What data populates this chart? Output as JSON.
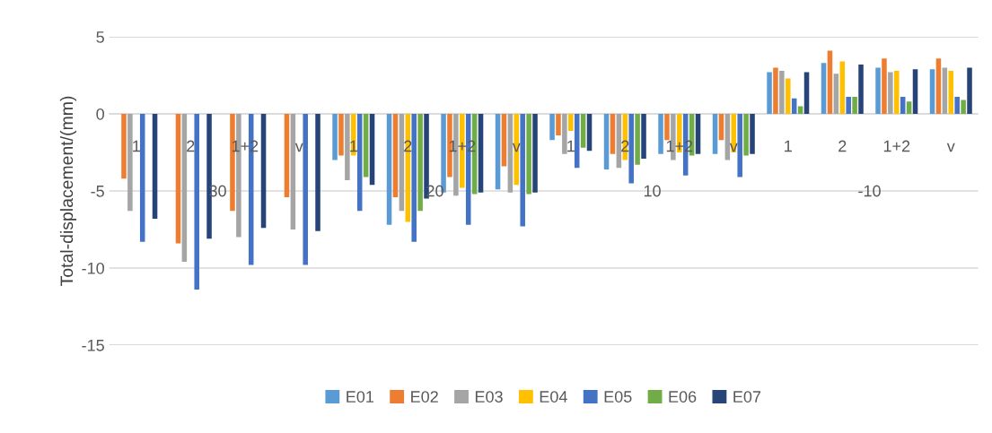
{
  "chart_data": {
    "type": "bar",
    "ylabel": "Total-displacement/(mm)",
    "categories": [
      "1",
      "2",
      "1+2",
      "v",
      "1",
      "2",
      "1+2",
      "v",
      "1",
      "2",
      "1+2",
      "v",
      "1",
      "2",
      "1+2",
      "v"
    ],
    "annotations": [
      "30",
      "20",
      "10",
      "-10"
    ],
    "series": [
      {
        "name": "E01",
        "color": "#5b9bd5",
        "values": [
          null,
          null,
          null,
          null,
          -3.0,
          -7.2,
          -5.1,
          -4.9,
          -1.7,
          -3.6,
          -2.6,
          -2.6,
          2.7,
          3.3,
          3.0,
          2.9
        ]
      },
      {
        "name": "E02",
        "color": "#ed7d31",
        "values": [
          -4.2,
          -8.4,
          -6.3,
          -5.4,
          -2.7,
          -5.4,
          -4.1,
          -3.4,
          -1.4,
          -2.6,
          -1.7,
          -1.7,
          3.0,
          4.1,
          3.6,
          3.6
        ]
      },
      {
        "name": "E03",
        "color": "#a5a5a5",
        "values": [
          -6.3,
          -9.6,
          -8.0,
          -7.5,
          -4.3,
          -6.3,
          -5.3,
          -5.1,
          -2.6,
          -3.5,
          -3.0,
          -3.0,
          2.8,
          2.6,
          2.7,
          3.0
        ]
      },
      {
        "name": "E04",
        "color": "#ffc000",
        "values": [
          null,
          null,
          null,
          null,
          -2.7,
          -7.0,
          -4.8,
          -4.6,
          -1.1,
          -3.0,
          -2.5,
          -2.5,
          2.3,
          3.4,
          2.8,
          2.8
        ]
      },
      {
        "name": "E05",
        "color": "#4472c4",
        "values": [
          -8.3,
          -11.4,
          -9.8,
          -9.8,
          -6.3,
          -8.3,
          -7.2,
          -7.3,
          -3.5,
          -4.5,
          -4.0,
          -4.1,
          1.0,
          1.1,
          1.1,
          1.1
        ]
      },
      {
        "name": "E06",
        "color": "#70ad47",
        "values": [
          null,
          null,
          null,
          null,
          -4.1,
          -6.3,
          -5.2,
          -5.2,
          -2.2,
          -3.3,
          -2.7,
          -2.7,
          0.5,
          1.1,
          0.8,
          0.9
        ]
      },
      {
        "name": "E07",
        "color": "#264478",
        "values": [
          -6.8,
          -8.1,
          -7.4,
          -7.6,
          -4.6,
          -5.5,
          -5.1,
          -5.1,
          -2.4,
          -2.9,
          -2.6,
          -2.6,
          2.7,
          3.2,
          2.9,
          3.0
        ]
      }
    ],
    "ylim": [
      -15,
      5
    ],
    "yticks": [
      -15,
      -10,
      -5,
      0,
      5
    ],
    "grid": "y",
    "legend": "bottom"
  }
}
